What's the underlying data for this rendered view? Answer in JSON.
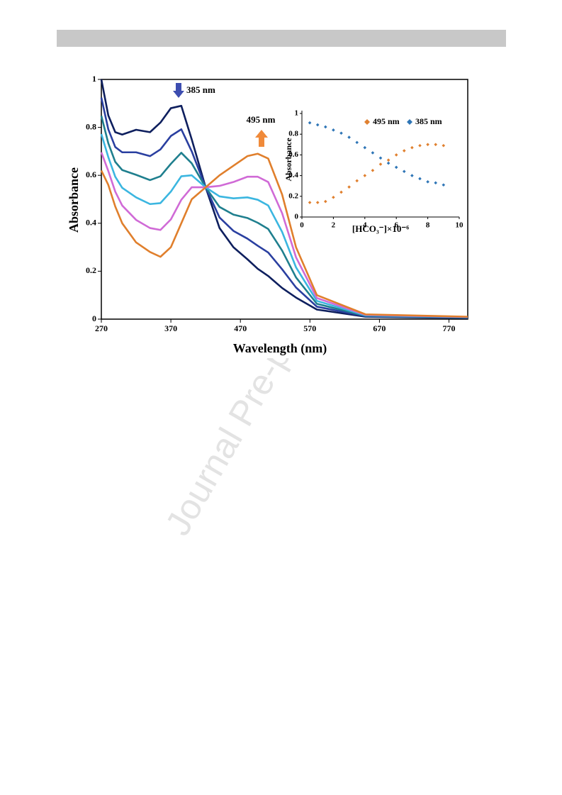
{
  "watermark": "Journal Pre-proof",
  "chart_data": [
    {
      "type": "line",
      "x_label": "Wavelength (nm)",
      "y_label": "Absorbance",
      "x": [
        270,
        280,
        290,
        300,
        320,
        340,
        355,
        370,
        385,
        400,
        420,
        440,
        460,
        480,
        495,
        510,
        530,
        550,
        580,
        650,
        797
      ],
      "series": [
        {
          "color": "#0e1f5e",
          "values": [
            1.0,
            0.85,
            0.78,
            0.77,
            0.79,
            0.78,
            0.82,
            0.88,
            0.89,
            0.75,
            0.55,
            0.38,
            0.3,
            0.25,
            0.21,
            0.18,
            0.13,
            0.09,
            0.04,
            0.01,
            0.005
          ]
        },
        {
          "color": "#2a3fa0",
          "values": [
            0.924,
            0.792,
            0.718,
            0.696,
            0.696,
            0.68,
            0.708,
            0.764,
            0.792,
            0.7,
            0.55,
            0.424,
            0.368,
            0.336,
            0.306,
            0.278,
            0.208,
            0.132,
            0.052,
            0.012,
            0.006
          ]
        },
        {
          "color": "#1f7f8e",
          "values": [
            0.848,
            0.734,
            0.656,
            0.622,
            0.602,
            0.58,
            0.596,
            0.648,
            0.694,
            0.65,
            0.55,
            0.468,
            0.436,
            0.422,
            0.402,
            0.376,
            0.286,
            0.174,
            0.064,
            0.014,
            0.007
          ]
        },
        {
          "color": "#3bb6e0",
          "values": [
            0.772,
            0.676,
            0.594,
            0.548,
            0.508,
            0.48,
            0.484,
            0.532,
            0.596,
            0.6,
            0.55,
            0.512,
            0.504,
            0.508,
            0.498,
            0.474,
            0.364,
            0.216,
            0.076,
            0.016,
            0.008
          ]
        },
        {
          "color": "#d06ad6",
          "values": [
            0.696,
            0.618,
            0.532,
            0.474,
            0.414,
            0.38,
            0.372,
            0.416,
            0.498,
            0.55,
            0.55,
            0.556,
            0.572,
            0.594,
            0.594,
            0.572,
            0.442,
            0.258,
            0.088,
            0.018,
            0.009
          ]
        },
        {
          "color": "#e07f2c",
          "values": [
            0.62,
            0.56,
            0.47,
            0.4,
            0.32,
            0.28,
            0.26,
            0.3,
            0.4,
            0.5,
            0.55,
            0.6,
            0.64,
            0.68,
            0.69,
            0.67,
            0.52,
            0.3,
            0.1,
            0.02,
            0.01
          ]
        }
      ],
      "xlim": [
        270,
        797
      ],
      "xticks": [
        270,
        370,
        470,
        570,
        670,
        770
      ],
      "ylim": [
        0,
        1
      ],
      "yticks": [
        0,
        0.2,
        0.4,
        0.6,
        0.8,
        1
      ],
      "annotations": [
        {
          "text": "385 nm"
        },
        {
          "text": "495 nm"
        }
      ],
      "grid": false
    },
    {
      "type": "scatter",
      "x_label": "[HCO₃⁻]×10⁻⁶",
      "y_label": "Absorbance",
      "x": [
        0.5,
        1,
        1.5,
        2,
        2.5,
        3,
        3.5,
        4,
        4.5,
        5,
        5.5,
        6,
        6.5,
        7,
        7.5,
        8,
        8.5,
        9
      ],
      "series": [
        {
          "name": "495 nm",
          "color": "#e0802f",
          "values": [
            0.14,
            0.14,
            0.15,
            0.19,
            0.24,
            0.29,
            0.35,
            0.4,
            0.45,
            0.51,
            0.55,
            0.6,
            0.64,
            0.67,
            0.69,
            0.7,
            0.7,
            0.69
          ]
        },
        {
          "name": "385 nm",
          "color": "#2e75b6",
          "values": [
            0.91,
            0.89,
            0.87,
            0.84,
            0.81,
            0.77,
            0.72,
            0.67,
            0.62,
            0.57,
            0.52,
            0.48,
            0.44,
            0.4,
            0.37,
            0.34,
            0.33,
            0.31
          ]
        }
      ],
      "xlim": [
        0,
        10
      ],
      "xticks": [
        0,
        2,
        4,
        6,
        8,
        10
      ],
      "ylim": [
        0,
        1
      ],
      "yticks": [
        0,
        0.2,
        0.4,
        0.6,
        0.8,
        1
      ],
      "grid": false
    }
  ]
}
